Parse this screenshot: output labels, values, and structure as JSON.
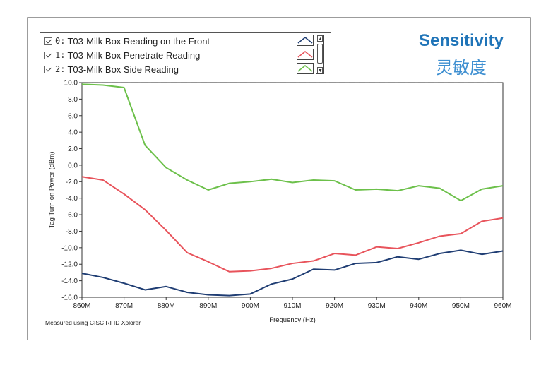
{
  "chart_data": {
    "type": "line",
    "x": [
      860,
      865,
      870,
      875,
      880,
      885,
      890,
      895,
      900,
      905,
      910,
      915,
      920,
      925,
      930,
      935,
      940,
      945,
      950,
      955,
      960
    ],
    "x_tick_labels": [
      "860M",
      "870M",
      "880M",
      "890M",
      "900M",
      "910M",
      "920M",
      "930M",
      "940M",
      "950M",
      "960M"
    ],
    "x_ticks": [
      860,
      870,
      880,
      890,
      900,
      910,
      920,
      930,
      940,
      950,
      960
    ],
    "xlim": [
      860,
      960
    ],
    "y_tick_labels": [
      "10.0",
      "8.0",
      "6.0",
      "4.0",
      "2.0",
      "0.0",
      "-2.0",
      "-4.0",
      "-6.0",
      "-8.0",
      "-10.0",
      "-12.0",
      "-14.0",
      "-16.0"
    ],
    "y_ticks": [
      10,
      8,
      6,
      4,
      2,
      0,
      -2,
      -4,
      -6,
      -8,
      -10,
      -12,
      -14,
      -16
    ],
    "ylim": [
      -16,
      10
    ],
    "xlabel": "Frequency (Hz)",
    "ylabel": "Tag Turn-on Power (dBm)",
    "reference_line": 10,
    "series": [
      {
        "name": "T03-Milk Box Reading on the Front",
        "index": "0:",
        "color": "#1f3d73",
        "values": [
          -13.1,
          -13.6,
          -14.3,
          -15.1,
          -14.7,
          -15.4,
          -15.7,
          -15.8,
          -15.6,
          -14.4,
          -13.8,
          -12.6,
          -12.7,
          -11.9,
          -11.8,
          -11.1,
          -11.4,
          -10.7,
          -10.3,
          -10.8,
          -10.4
        ]
      },
      {
        "name": "T03-Milk Box Penetrate Reading",
        "index": "1:",
        "color": "#e8535b",
        "values": [
          -1.4,
          -1.8,
          -3.5,
          -5.4,
          -7.9,
          -10.6,
          -11.7,
          -12.9,
          -12.8,
          -12.5,
          -11.9,
          -11.6,
          -10.7,
          -10.9,
          -9.9,
          -10.1,
          -9.4,
          -8.6,
          -8.3,
          -6.8,
          -6.4
        ]
      },
      {
        "name": "T03-Milk Box Side Reading",
        "index": "2:",
        "color": "#6cc04a",
        "values": [
          9.8,
          9.7,
          9.4,
          2.4,
          -0.3,
          -1.8,
          -3.0,
          -2.2,
          -2.0,
          -1.7,
          -2.1,
          -1.8,
          -1.9,
          -3.0,
          -2.9,
          -3.1,
          -2.5,
          -2.8,
          -4.3,
          -2.9,
          -2.5
        ]
      }
    ]
  },
  "title": {
    "en": "Sensitivity",
    "cn": "灵敏度"
  },
  "footnote": "Measured using CISC RFID Xplorer",
  "scroll": {
    "up": "▲",
    "down": "▼"
  }
}
